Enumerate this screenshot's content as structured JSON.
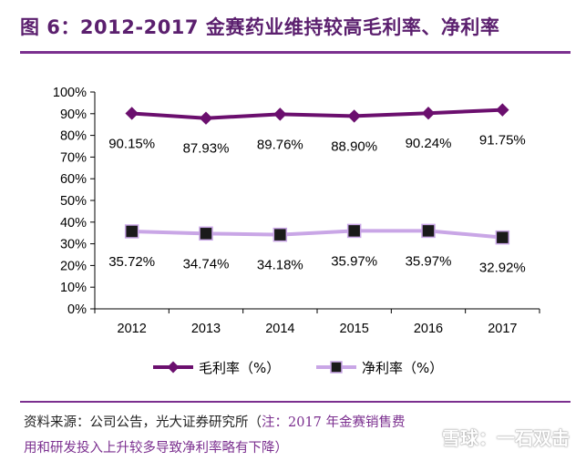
{
  "title": "图 6：2012-2017 金赛药业维持较高毛利率、净利率",
  "source_line1_prefix": "资料来源：公司公告，光大证券研究所（",
  "source_line1_note": "注：2017 年金赛销售费",
  "source_line2": "用和研发投入上升较多导致净利率略有下降）",
  "watermark": "雪球：一石双击",
  "colors": {
    "title": "#5b1f6e",
    "gross": "#6b0f6e",
    "net_line": "#c9a6e6",
    "net_marker": "#1a1a1a",
    "axis": "#000000"
  },
  "chart_data": {
    "type": "line",
    "categories": [
      "2012",
      "2013",
      "2014",
      "2015",
      "2016",
      "2017"
    ],
    "ylim": [
      0,
      100
    ],
    "yticks": [
      "0%",
      "10%",
      "20%",
      "30%",
      "40%",
      "50%",
      "60%",
      "70%",
      "80%",
      "90%",
      "100%"
    ],
    "grid": false,
    "legend_position": "bottom",
    "series": [
      {
        "name": "毛利率（%）",
        "values": [
          90.15,
          87.93,
          89.76,
          88.9,
          90.24,
          91.75
        ],
        "labels": [
          "90.15%",
          "87.93%",
          "89.76%",
          "88.90%",
          "90.24%",
          "91.75%"
        ],
        "marker": "diamond"
      },
      {
        "name": "净利率（%）",
        "values": [
          35.72,
          34.74,
          34.18,
          35.97,
          35.97,
          32.92
        ],
        "labels": [
          "35.72%",
          "34.74%",
          "34.18%",
          "35.97%",
          "35.97%",
          "32.92%"
        ],
        "marker": "square"
      }
    ]
  }
}
